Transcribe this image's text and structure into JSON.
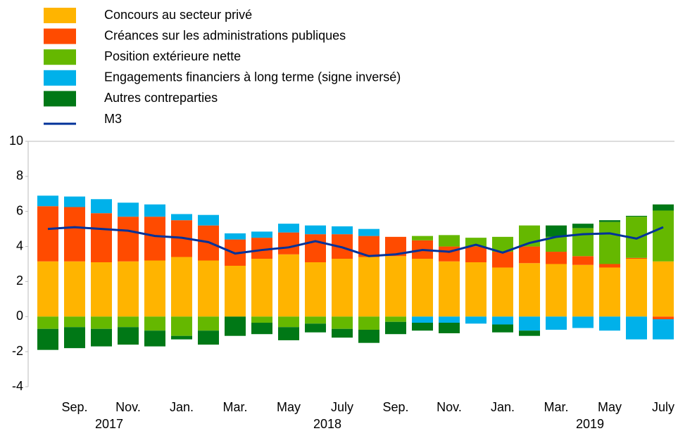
{
  "chart_data": {
    "type": "stacked_bar_line",
    "categories": [
      null,
      "Sep.",
      null,
      "Nov.",
      null,
      "Jan.",
      null,
      "Mar.",
      null,
      "May",
      null,
      "July",
      null,
      "Sep.",
      null,
      "Nov.",
      null,
      "Jan.",
      null,
      "Mar.",
      null,
      "May",
      null,
      "July"
    ],
    "years": [
      "2017",
      "2018",
      "2019"
    ],
    "series": [
      {
        "name": "Concours au secteur privé",
        "color": "#ffb400",
        "values": [
          3.15,
          3.15,
          3.1,
          3.15,
          3.2,
          3.4,
          3.2,
          2.9,
          3.3,
          3.55,
          3.1,
          3.3,
          3.4,
          3.45,
          3.3,
          3.15,
          3.1,
          2.8,
          3.05,
          3.0,
          2.95,
          2.8,
          3.3,
          3.15
        ]
      },
      {
        "name": "Créances sur les administrations publiques",
        "color": "#ff4b00",
        "values": [
          3.15,
          3.1,
          2.8,
          2.55,
          2.5,
          2.1,
          2.0,
          1.5,
          1.2,
          1.25,
          1.6,
          1.4,
          1.2,
          1.1,
          1.05,
          0.85,
          0.9,
          0.9,
          0.95,
          0.7,
          0.5,
          0.2,
          0.05,
          -0.15
        ]
      },
      {
        "name": "Position extérieure nette",
        "color": "#65b800",
        "values": [
          -0.7,
          -0.6,
          -0.7,
          -0.6,
          -0.8,
          -1.1,
          -0.8,
          0,
          -0.35,
          -0.6,
          -0.4,
          -0.7,
          -0.75,
          -0.3,
          0.25,
          0.65,
          0.5,
          0.85,
          1.2,
          0.85,
          1.6,
          2.4,
          2.35,
          2.9
        ]
      },
      {
        "name": "Engagements financiers à long terme (signe inversé)",
        "color": "#00b1ea",
        "values": [
          0.6,
          0.6,
          0.8,
          0.8,
          0.7,
          0.35,
          0.6,
          0.35,
          0.35,
          0.5,
          0.5,
          0.45,
          0.4,
          0,
          -0.35,
          -0.35,
          -0.4,
          -0.45,
          -0.8,
          -0.75,
          -0.65,
          -0.8,
          -1.3,
          -1.15
        ]
      },
      {
        "name": "Autres contreparties",
        "color": "#007816",
        "values": [
          -1.2,
          -1.2,
          -1.0,
          -1.0,
          -0.9,
          -0.2,
          -0.8,
          -1.1,
          -0.65,
          -0.75,
          -0.5,
          -0.5,
          -0.75,
          -0.7,
          -0.45,
          -0.6,
          0,
          -0.45,
          -0.3,
          0.65,
          0.25,
          0.1,
          0.05,
          0.35
        ]
      },
      {
        "name": "M3",
        "color": "#003299",
        "kind": "line",
        "values": [
          5.0,
          5.1,
          5.0,
          4.9,
          4.6,
          4.5,
          4.25,
          3.6,
          3.8,
          3.95,
          4.3,
          3.95,
          3.45,
          3.55,
          3.8,
          3.7,
          4.1,
          3.65,
          4.2,
          4.55,
          4.7,
          4.75,
          4.45,
          5.1
        ]
      }
    ],
    "ylim": [
      -4,
      10
    ],
    "yticks": [
      -4,
      -2,
      0,
      2,
      4,
      6,
      8,
      10
    ]
  }
}
